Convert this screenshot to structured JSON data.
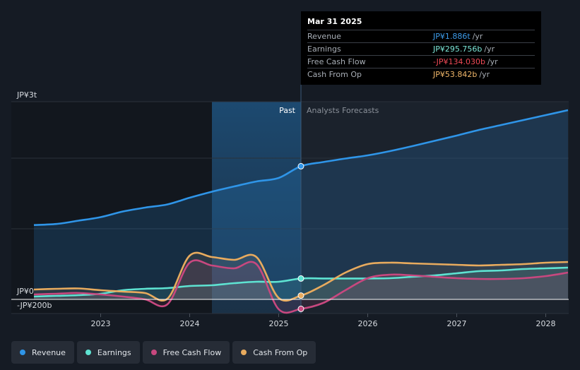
{
  "tooltip": {
    "date": "Mar 31 2025",
    "rows": [
      {
        "name": "Revenue",
        "value": "JP¥1.886t",
        "unit": "/yr",
        "color": "#3d9be9"
      },
      {
        "name": "Earnings",
        "value": "JP¥295.756b",
        "unit": "/yr",
        "color": "#7de8d9"
      },
      {
        "name": "Free Cash Flow",
        "value": "-JP¥134.030b",
        "unit": "/yr",
        "color": "#f04a57"
      },
      {
        "name": "Cash From Op",
        "value": "JP¥53.842b",
        "unit": "/yr",
        "color": "#f1b76a"
      }
    ]
  },
  "sections": {
    "past": "Past",
    "forecast": "Analysts Forecasts"
  },
  "legend": [
    {
      "label": "Revenue",
      "color": "#2f95e8"
    },
    {
      "label": "Earnings",
      "color": "#5ee3d2"
    },
    {
      "label": "Free Cash Flow",
      "color": "#c8487f"
    },
    {
      "label": "Cash From Op",
      "color": "#e8ab5e"
    }
  ],
  "chart_data": {
    "type": "line",
    "title": "",
    "xlabel": "",
    "ylabel": "",
    "currency_unit": "JP¥ billions",
    "x_ticks": [
      "2023",
      "2024",
      "2025",
      "2026",
      "2027",
      "2028"
    ],
    "y_tick_labels": [
      "JP¥3t",
      "JP¥0",
      "-JP¥200b"
    ],
    "xlim": [
      2022.25,
      2028.25
    ],
    "ylim": [
      -200,
      2800
    ],
    "past_end": 2025.25,
    "highlight_start": 2024.25,
    "marker_x": 2025.25,
    "series": [
      {
        "name": "Revenue",
        "color": "#2f95e8",
        "x": [
          2022.25,
          2022.5,
          2022.75,
          2023.0,
          2023.25,
          2023.5,
          2023.75,
          2024.0,
          2024.25,
          2024.5,
          2024.75,
          2025.0,
          2025.25,
          2025.5,
          2025.75,
          2026.0,
          2026.25,
          2026.5,
          2026.75,
          2027.0,
          2027.25,
          2027.5,
          2027.75,
          2028.0,
          2028.25
        ],
        "values": [
          1053,
          1068,
          1115,
          1165,
          1245,
          1300,
          1345,
          1440,
          1525,
          1600,
          1670,
          1720,
          1886,
          1945,
          1995,
          2040,
          2100,
          2170,
          2245,
          2320,
          2400,
          2470,
          2540,
          2610,
          2680
        ]
      },
      {
        "name": "Earnings",
        "color": "#5ee3d2",
        "x": [
          2022.25,
          2022.5,
          2022.75,
          2023.0,
          2023.25,
          2023.5,
          2023.75,
          2024.0,
          2024.25,
          2024.5,
          2024.75,
          2025.0,
          2025.25,
          2025.5,
          2025.75,
          2026.0,
          2026.25,
          2026.5,
          2026.75,
          2027.0,
          2027.25,
          2027.5,
          2027.75,
          2028.0,
          2028.25
        ],
        "values": [
          40,
          50,
          60,
          80,
          130,
          150,
          160,
          190,
          200,
          230,
          250,
          250,
          296,
          296,
          296,
          296,
          300,
          320,
          340,
          370,
          400,
          410,
          430,
          440,
          450
        ]
      },
      {
        "name": "Free Cash Flow",
        "color": "#c8487f",
        "x": [
          2022.25,
          2022.5,
          2022.75,
          2023.0,
          2023.25,
          2023.5,
          2023.75,
          2024.0,
          2024.25,
          2024.5,
          2024.75,
          2025.0,
          2025.25,
          2025.5,
          2025.75,
          2026.0,
          2026.25,
          2026.5,
          2026.75,
          2027.0,
          2027.25,
          2027.5,
          2027.75,
          2028.0,
          2028.25
        ],
        "values": [
          70,
          80,
          90,
          70,
          40,
          0,
          -70,
          520,
          480,
          440,
          500,
          -140,
          -134,
          -50,
          130,
          300,
          350,
          340,
          320,
          300,
          290,
          290,
          300,
          330,
          380
        ]
      },
      {
        "name": "Cash From Op",
        "color": "#e8ab5e",
        "x": [
          2022.25,
          2022.5,
          2022.75,
          2023.0,
          2023.25,
          2023.5,
          2023.75,
          2024.0,
          2024.25,
          2024.5,
          2024.75,
          2025.0,
          2025.25,
          2025.5,
          2025.75,
          2026.0,
          2026.25,
          2026.5,
          2026.75,
          2027.0,
          2027.25,
          2027.5,
          2027.75,
          2028.0,
          2028.25
        ],
        "values": [
          140,
          150,
          155,
          130,
          110,
          90,
          10,
          620,
          600,
          560,
          600,
          20,
          54,
          200,
          380,
          500,
          520,
          510,
          500,
          490,
          480,
          490,
          500,
          520,
          530
        ]
      }
    ]
  }
}
